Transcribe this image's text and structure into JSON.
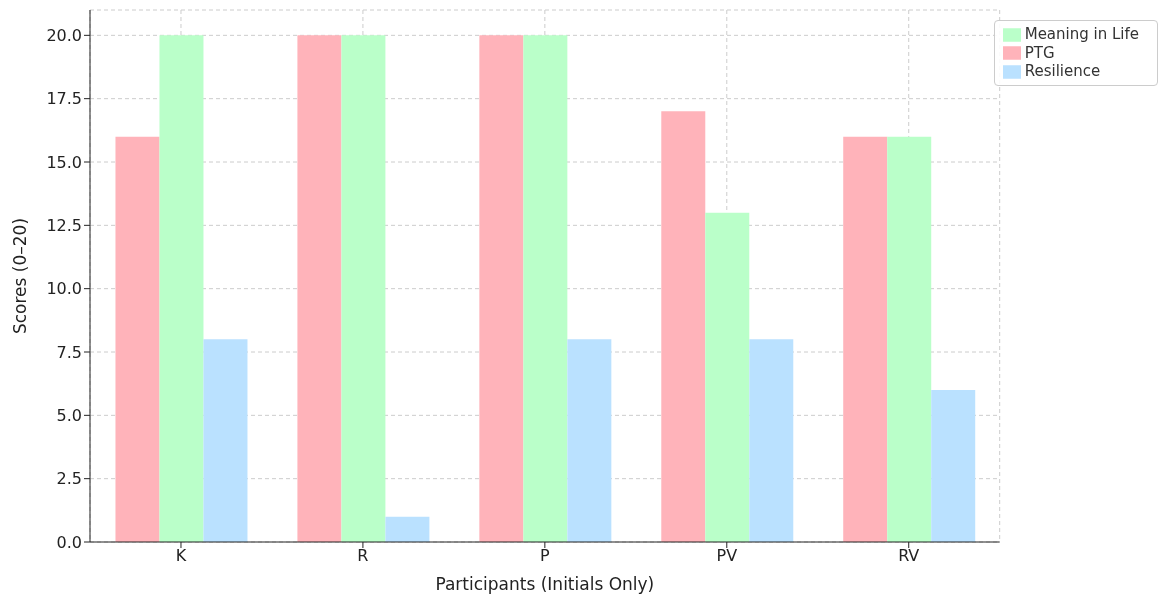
{
  "chart_data": {
    "type": "bar",
    "xlabel": "Participants (Initials Only)",
    "ylabel": "Scores (0–20)",
    "categories": [
      "K",
      "R",
      "P",
      "PV",
      "RV"
    ],
    "series": [
      {
        "name": "PTG",
        "color": "#ffb3ba",
        "values": [
          16,
          20,
          20,
          17,
          16
        ]
      },
      {
        "name": "Meaning in Life",
        "color": "#baffc9",
        "values": [
          20,
          20,
          20,
          13,
          16
        ]
      },
      {
        "name": "Resilience",
        "color": "#bae1ff",
        "values": [
          8,
          1,
          8,
          8,
          6
        ]
      }
    ],
    "ylim": [
      0,
      21
    ],
    "yticks": [
      {
        "value": 0,
        "label": "0.0"
      },
      {
        "value": 2.5,
        "label": "2.5"
      },
      {
        "value": 5,
        "label": "5.0"
      },
      {
        "value": 7.5,
        "label": "7.5"
      },
      {
        "value": 10,
        "label": "10.0"
      },
      {
        "value": 12.5,
        "label": "12.5"
      },
      {
        "value": 15,
        "label": "15.0"
      },
      {
        "value": 17.5,
        "label": "17.5"
      },
      {
        "value": 20,
        "label": "20.0"
      }
    ],
    "grid": true,
    "legend": "top right"
  }
}
